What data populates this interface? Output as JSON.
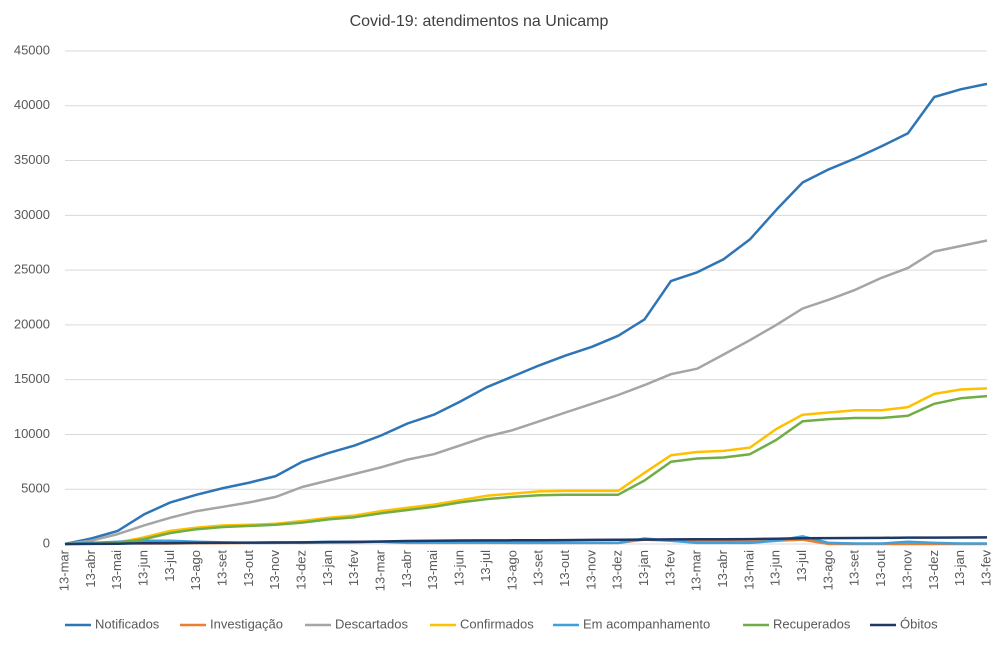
{
  "chart_data": {
    "type": "line",
    "title": "Covid-19: atendimentos  na Unicamp",
    "categories": [
      "13-mar",
      "13-abr",
      "13-mai",
      "13-jun",
      "13-jul",
      "13-ago",
      "13-set",
      "13-out",
      "13-nov",
      "13-dez",
      "13-jan",
      "13-fev",
      "13-mar",
      "13-abr",
      "13-mai",
      "13-jun",
      "13-jul",
      "13-ago",
      "13-set",
      "13-out",
      "13-nov",
      "13-dez",
      "13-jan",
      "13-fev",
      "13-mar",
      "13-abr",
      "13-mai",
      "13-jun",
      "13-jul",
      "13-ago",
      "13-set",
      "13-out",
      "13-nov",
      "13-dez",
      "13-jan",
      "13-fev"
    ],
    "ylim": [
      0,
      45000
    ],
    "yticks": [
      0,
      5000,
      10000,
      15000,
      20000,
      25000,
      30000,
      35000,
      40000,
      45000
    ],
    "grid": true,
    "legend": "bottom",
    "series": [
      {
        "name": "Notificados",
        "color": "#2e75b6",
        "values": [
          0,
          500,
          1200,
          2700,
          3800,
          4500,
          5100,
          5600,
          6200,
          7500,
          8300,
          9000,
          9900,
          11000,
          11800,
          13000,
          14300,
          15300,
          16300,
          17200,
          18000,
          19000,
          20500,
          24000,
          24800,
          26000,
          27800,
          30500,
          33000,
          34200,
          35200,
          36300,
          37500,
          40800,
          41500,
          42000
        ]
      },
      {
        "name": "Investigação",
        "color": "#ed7d31",
        "values": [
          0,
          100,
          100,
          50,
          50,
          80,
          80,
          100,
          150,
          100,
          150,
          150,
          200,
          100,
          100,
          100,
          100,
          100,
          100,
          100,
          100,
          100,
          400,
          300,
          200,
          200,
          200,
          300,
          400,
          0,
          0,
          0,
          0,
          0,
          0,
          0
        ]
      },
      {
        "name": "Descartados",
        "color": "#a5a5a5",
        "values": [
          0,
          300,
          900,
          1700,
          2400,
          3000,
          3400,
          3800,
          4300,
          5200,
          5800,
          6400,
          7000,
          7700,
          8200,
          9000,
          9800,
          10400,
          11200,
          12000,
          12800,
          13600,
          14500,
          15500,
          16000,
          17300,
          18600,
          20000,
          21500,
          22300,
          23200,
          24300,
          25200,
          26700,
          27200,
          27700
        ]
      },
      {
        "name": "Confirmados",
        "color": "#ffc000",
        "values": [
          0,
          50,
          150,
          600,
          1200,
          1500,
          1700,
          1750,
          1850,
          2100,
          2400,
          2600,
          3000,
          3300,
          3600,
          4000,
          4400,
          4600,
          4800,
          4850,
          4850,
          4850,
          6500,
          8100,
          8400,
          8500,
          8800,
          10500,
          11800,
          12000,
          12200,
          12200,
          12500,
          13700,
          14100,
          14200
        ]
      },
      {
        "name": "Em acompanhamento",
        "color": "#3fa0dc",
        "values": [
          0,
          100,
          200,
          300,
          300,
          200,
          150,
          100,
          100,
          150,
          200,
          200,
          200,
          150,
          150,
          150,
          150,
          100,
          100,
          100,
          100,
          100,
          500,
          300,
          100,
          100,
          100,
          300,
          700,
          100,
          50,
          50,
          200,
          100,
          50,
          50
        ]
      },
      {
        "name": "Recuperados",
        "color": "#70ad47",
        "values": [
          0,
          30,
          100,
          450,
          1000,
          1350,
          1550,
          1650,
          1750,
          1950,
          2250,
          2450,
          2800,
          3100,
          3400,
          3800,
          4100,
          4300,
          4450,
          4500,
          4500,
          4500,
          5800,
          7500,
          7800,
          7900,
          8200,
          9500,
          11200,
          11400,
          11500,
          11500,
          11700,
          12800,
          13300,
          13500
        ]
      },
      {
        "name": "Óbitos",
        "color": "#1f3864",
        "values": [
          0,
          10,
          30,
          60,
          80,
          100,
          120,
          130,
          140,
          150,
          170,
          190,
          230,
          270,
          300,
          320,
          330,
          340,
          350,
          360,
          370,
          380,
          400,
          420,
          430,
          440,
          450,
          480,
          520,
          540,
          550,
          560,
          580,
          580,
          590,
          600
        ]
      }
    ]
  }
}
